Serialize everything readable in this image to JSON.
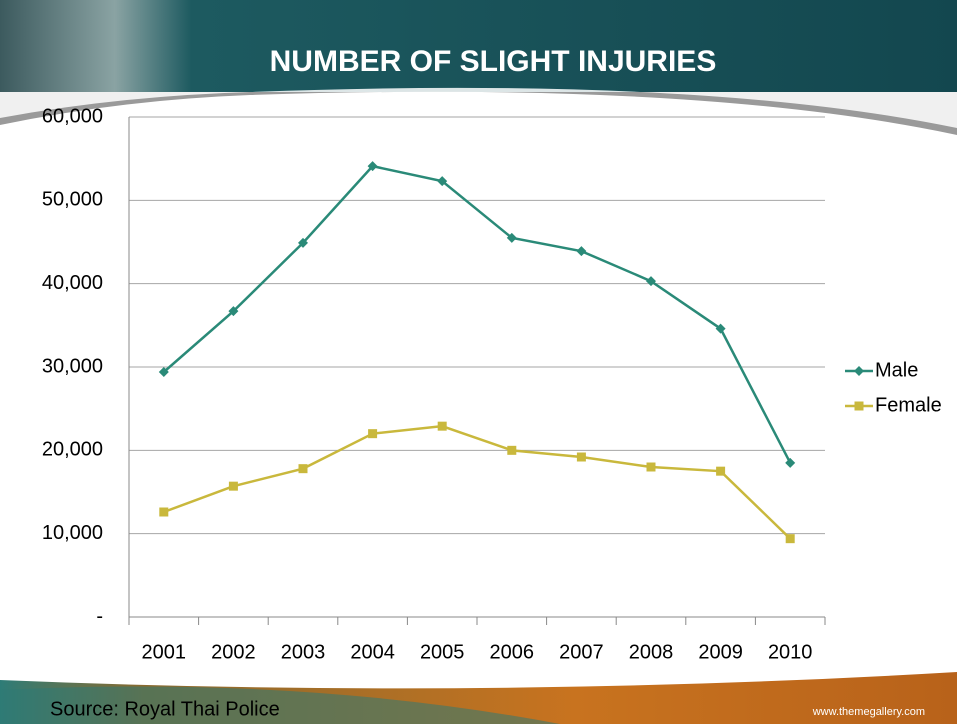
{
  "chart_data": {
    "type": "line",
    "title": "NUMBER OF SLIGHT INJURIES",
    "categories": [
      "2001",
      "2002",
      "2003",
      "2004",
      "2005",
      "2006",
      "2007",
      "2008",
      "2009",
      "2010"
    ],
    "series": [
      {
        "name": "Male",
        "color": "#2a8a78",
        "marker": "diamond",
        "values": [
          29400,
          36700,
          44900,
          54100,
          52300,
          45500,
          43900,
          40300,
          34600,
          18500
        ]
      },
      {
        "name": "Female",
        "color": "#c9b83c",
        "marker": "square",
        "values": [
          12600,
          15700,
          17800,
          22000,
          22900,
          20000,
          19200,
          18000,
          17500,
          9400
        ]
      }
    ],
    "ylim": [
      0,
      60000
    ],
    "yticks": [
      {
        "value": 0,
        "label": "-"
      },
      {
        "value": 10000,
        "label": "10,000"
      },
      {
        "value": 20000,
        "label": "20,000"
      },
      {
        "value": 30000,
        "label": "30,000"
      },
      {
        "value": 40000,
        "label": "40,000"
      },
      {
        "value": 50000,
        "label": "50,000"
      },
      {
        "value": 60000,
        "label": "60,000"
      }
    ],
    "grid": true,
    "legend": "right"
  },
  "footer": {
    "source": "Source: Royal Thai Police",
    "website": "www.themegallery.com"
  }
}
